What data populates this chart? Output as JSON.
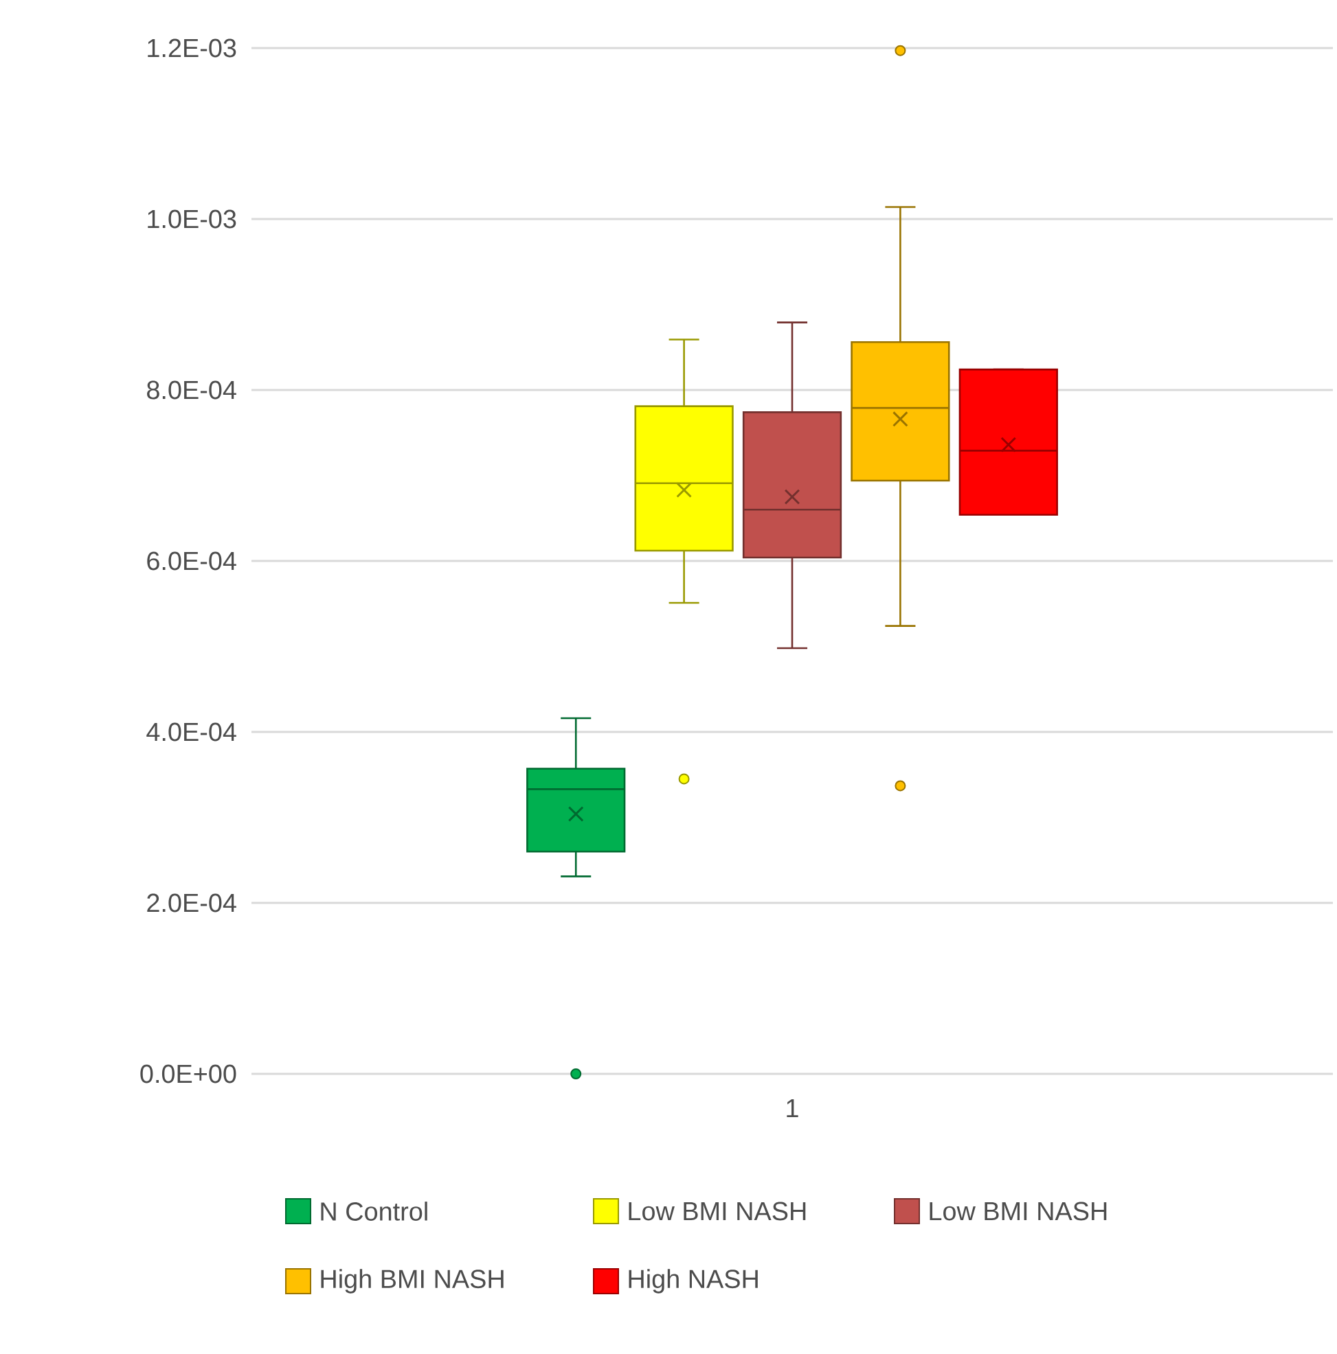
{
  "chart_data": {
    "type": "box",
    "categories": [
      "1"
    ],
    "ylim": [
      0,
      0.0012
    ],
    "yticks": [
      {
        "value": 0,
        "label": "0.0E+00"
      },
      {
        "value": 0.0002,
        "label": "2.0E-04"
      },
      {
        "value": 0.0004,
        "label": "4.0E-04"
      },
      {
        "value": 0.0006,
        "label": "6.0E-04"
      },
      {
        "value": 0.0008,
        "label": "8.0E-04"
      },
      {
        "value": 0.001,
        "label": "1.0E-03"
      },
      {
        "value": 0.0012,
        "label": "1.2E-03"
      }
    ],
    "grid": "y",
    "legend": "bottom",
    "series": [
      {
        "name": "N Control",
        "color": "#00b050",
        "boxes": [
          {
            "low": 0.000231,
            "q1": 0.00026,
            "median": 0.000333,
            "q3": 0.000357,
            "high": 0.000416,
            "mean": 0.000304,
            "outliers": [
              0
            ]
          }
        ]
      },
      {
        "name": "Low BMI NASH",
        "color": "#ffff00",
        "boxes": [
          {
            "low": 0.000551,
            "q1": 0.000612,
            "median": 0.000691,
            "q3": 0.000781,
            "high": 0.000859,
            "mean": 0.000683,
            "outliers": [
              0.000345
            ]
          }
        ]
      },
      {
        "name": "Low BMI NASH",
        "color": "#c0504d",
        "boxes": [
          {
            "low": 0.000498,
            "q1": 0.000604,
            "median": 0.00066,
            "q3": 0.000774,
            "high": 0.000879,
            "mean": 0.000675
          }
        ]
      },
      {
        "name": "High BMI NASH",
        "color": "#ffc000",
        "boxes": [
          {
            "low": 0.000524,
            "q1": 0.000694,
            "median": 0.000779,
            "q3": 0.000856,
            "high": 0.001014,
            "mean": 0.000766,
            "outliers": [
              0.001197,
              0.000337
            ]
          }
        ]
      },
      {
        "name": "High NASH",
        "color": "#ff0000",
        "boxes": [
          {
            "low": 0.000654,
            "q1": 0.000654,
            "median": 0.000729,
            "q3": 0.000824,
            "high": 0.000824,
            "mean": 0.000736
          }
        ]
      }
    ]
  }
}
